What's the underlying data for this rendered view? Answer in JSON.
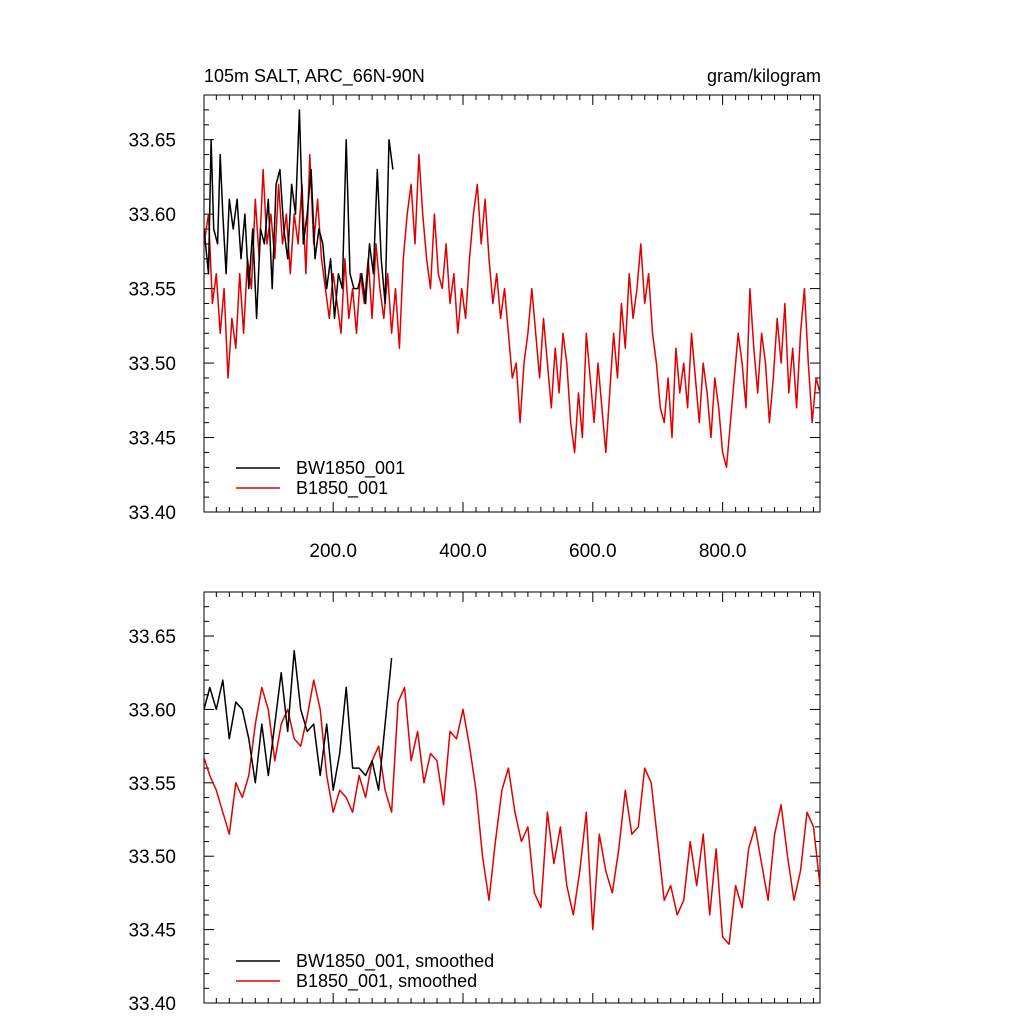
{
  "figure": {
    "title_left": "105m SALT, ARC_66N-90N",
    "title_right": "gram/kilogram"
  },
  "colors": {
    "black_series": "#000000",
    "red_series": "#e00000",
    "axis": "#000000"
  },
  "chart_data": [
    {
      "type": "line",
      "panel": "top",
      "title": "105m SALT, ARC_66N-90N",
      "unit": "gram/kilogram",
      "xlim": [
        1,
        950
      ],
      "ylim": [
        33.4,
        33.68
      ],
      "xticks": [
        200,
        400,
        600,
        800
      ],
      "xtick_labels": [
        "200.0",
        "400.0",
        "600.0",
        "800.0"
      ],
      "yticks": [
        33.4,
        33.45,
        33.5,
        33.55,
        33.6,
        33.65
      ],
      "ytick_labels": [
        "33.40",
        "33.45",
        "33.50",
        "33.55",
        "33.60",
        "33.65"
      ],
      "grid": false,
      "legend_position": "bottom-left",
      "series": [
        {
          "name": "BW1850_001",
          "color": "#000000",
          "x": [
            1,
            8,
            12,
            16,
            22,
            26,
            30,
            35,
            40,
            46,
            52,
            58,
            64,
            70,
            76,
            82,
            88,
            94,
            100,
            106,
            112,
            118,
            124,
            130,
            136,
            142,
            148,
            154,
            160,
            166,
            172,
            178,
            184,
            190,
            196,
            202,
            208,
            214,
            220,
            226,
            232,
            238,
            244,
            250,
            256,
            262,
            268,
            274,
            280,
            286,
            292
          ],
          "y": [
            33.59,
            33.56,
            33.65,
            33.59,
            33.58,
            33.64,
            33.6,
            33.56,
            33.61,
            33.59,
            33.61,
            33.57,
            33.6,
            33.55,
            33.59,
            33.53,
            33.59,
            33.58,
            33.61,
            33.55,
            33.62,
            33.63,
            33.59,
            33.57,
            33.62,
            33.6,
            33.67,
            33.58,
            33.6,
            33.63,
            33.57,
            33.59,
            33.58,
            33.55,
            33.57,
            33.53,
            33.56,
            33.55,
            33.65,
            33.56,
            33.55,
            33.55,
            33.56,
            33.54,
            33.58,
            33.56,
            33.63,
            33.57,
            33.54,
            33.65,
            33.63
          ]
        },
        {
          "name": "B1850_001",
          "color": "#e00000",
          "x": [
            1,
            8,
            14,
            20,
            26,
            32,
            38,
            44,
            50,
            56,
            62,
            68,
            74,
            80,
            86,
            92,
            98,
            104,
            110,
            116,
            122,
            128,
            134,
            140,
            146,
            152,
            158,
            164,
            170,
            176,
            182,
            188,
            194,
            200,
            206,
            212,
            218,
            224,
            230,
            236,
            242,
            248,
            254,
            260,
            266,
            272,
            278,
            284,
            290,
            296,
            302,
            308,
            314,
            320,
            326,
            332,
            338,
            344,
            350,
            356,
            362,
            368,
            374,
            380,
            386,
            392,
            398,
            404,
            410,
            416,
            422,
            428,
            434,
            440,
            446,
            452,
            458,
            464,
            470,
            476,
            482,
            488,
            494,
            500,
            506,
            512,
            518,
            524,
            530,
            536,
            542,
            548,
            554,
            560,
            566,
            572,
            578,
            584,
            590,
            596,
            602,
            608,
            614,
            620,
            626,
            632,
            638,
            644,
            650,
            656,
            662,
            668,
            674,
            680,
            686,
            692,
            698,
            704,
            710,
            716,
            722,
            728,
            734,
            740,
            746,
            752,
            758,
            764,
            770,
            776,
            782,
            788,
            794,
            800,
            806,
            812,
            818,
            824,
            830,
            836,
            842,
            848,
            854,
            860,
            866,
            872,
            878,
            884,
            890,
            896,
            902,
            908,
            914,
            920,
            926,
            932,
            938,
            944,
            950
          ],
          "y": [
            33.58,
            33.6,
            33.54,
            33.56,
            33.52,
            33.55,
            33.49,
            33.53,
            33.51,
            33.56,
            33.52,
            33.57,
            33.55,
            33.61,
            33.57,
            33.63,
            33.58,
            33.6,
            33.57,
            33.62,
            33.58,
            33.6,
            33.56,
            33.6,
            33.58,
            33.62,
            33.56,
            33.64,
            33.58,
            33.61,
            33.57,
            33.55,
            33.53,
            33.56,
            33.54,
            33.52,
            33.57,
            33.53,
            33.55,
            33.52,
            33.56,
            33.54,
            33.57,
            33.53,
            33.58,
            33.55,
            33.53,
            33.56,
            33.52,
            33.55,
            33.51,
            33.57,
            33.6,
            33.62,
            33.58,
            33.64,
            33.6,
            33.57,
            33.55,
            33.6,
            33.56,
            33.55,
            33.58,
            33.54,
            33.56,
            33.52,
            33.55,
            33.53,
            33.57,
            33.6,
            33.62,
            33.58,
            33.61,
            33.57,
            33.54,
            33.56,
            33.53,
            33.55,
            33.52,
            33.49,
            33.5,
            33.46,
            33.5,
            33.52,
            33.55,
            33.52,
            33.49,
            33.53,
            33.5,
            33.47,
            33.51,
            33.48,
            33.52,
            33.5,
            33.46,
            33.44,
            33.48,
            33.45,
            33.52,
            33.49,
            33.46,
            33.5,
            33.47,
            33.44,
            33.48,
            33.52,
            33.49,
            33.54,
            33.51,
            33.56,
            33.53,
            33.55,
            33.58,
            33.54,
            33.56,
            33.52,
            33.5,
            33.47,
            33.46,
            33.49,
            33.45,
            33.51,
            33.48,
            33.5,
            33.47,
            33.52,
            33.49,
            33.46,
            33.5,
            33.48,
            33.45,
            33.49,
            33.47,
            33.44,
            33.43,
            33.46,
            33.49,
            33.52,
            33.5,
            33.47,
            33.55,
            33.51,
            33.48,
            33.52,
            33.5,
            33.46,
            33.49,
            33.53,
            33.5,
            33.54,
            33.48,
            33.51,
            33.47,
            33.52,
            33.55,
            33.5,
            33.46,
            33.49,
            33.48
          ],
          "precision_note": ""
        }
      ]
    },
    {
      "type": "line",
      "panel": "bottom",
      "xlim": [
        1,
        950
      ],
      "ylim": [
        33.4,
        33.68
      ],
      "yticks": [
        33.4,
        33.45,
        33.5,
        33.55,
        33.6,
        33.65
      ],
      "ytick_labels": [
        "33.40",
        "33.45",
        "33.50",
        "33.55",
        "33.60",
        "33.65"
      ],
      "grid": false,
      "legend_position": "bottom-left",
      "series": [
        {
          "name": "BW1850_001, smoothed",
          "color": "#000000",
          "x": [
            1,
            10,
            20,
            30,
            40,
            50,
            60,
            70,
            80,
            90,
            100,
            110,
            120,
            130,
            140,
            150,
            160,
            170,
            180,
            190,
            200,
            210,
            220,
            230,
            240,
            250,
            260,
            270,
            280,
            290
          ],
          "y": [
            33.6,
            33.615,
            33.6,
            33.62,
            33.58,
            33.605,
            33.6,
            33.58,
            33.55,
            33.59,
            33.555,
            33.59,
            33.625,
            33.585,
            33.64,
            33.6,
            33.585,
            33.59,
            33.555,
            33.59,
            33.545,
            33.57,
            33.615,
            33.56,
            33.56,
            33.555,
            33.565,
            33.545,
            33.59,
            33.635
          ]
        },
        {
          "name": "B1850_001, smoothed",
          "color": "#e00000",
          "x": [
            1,
            10,
            20,
            30,
            40,
            50,
            60,
            70,
            80,
            90,
            100,
            110,
            120,
            130,
            140,
            150,
            160,
            170,
            180,
            190,
            200,
            210,
            220,
            230,
            240,
            250,
            260,
            270,
            280,
            290,
            300,
            310,
            320,
            330,
            340,
            350,
            360,
            370,
            380,
            390,
            400,
            410,
            420,
            430,
            440,
            450,
            460,
            470,
            480,
            490,
            500,
            510,
            520,
            530,
            540,
            550,
            560,
            570,
            580,
            590,
            600,
            610,
            620,
            630,
            640,
            650,
            660,
            670,
            680,
            690,
            700,
            710,
            720,
            730,
            740,
            750,
            760,
            770,
            780,
            790,
            800,
            810,
            820,
            830,
            840,
            850,
            860,
            870,
            880,
            890,
            900,
            910,
            920,
            930,
            940,
            950
          ],
          "y": [
            33.567,
            33.555,
            33.545,
            33.53,
            33.515,
            33.55,
            33.54,
            33.555,
            33.59,
            33.615,
            33.6,
            33.565,
            33.59,
            33.6,
            33.58,
            33.575,
            33.595,
            33.62,
            33.6,
            33.555,
            33.53,
            33.545,
            33.54,
            33.53,
            33.555,
            33.54,
            33.565,
            33.575,
            33.545,
            33.53,
            33.605,
            33.615,
            33.565,
            33.585,
            33.55,
            33.57,
            33.565,
            33.535,
            33.585,
            33.58,
            33.6,
            33.575,
            33.545,
            33.5,
            33.47,
            33.51,
            33.545,
            33.56,
            33.53,
            33.51,
            33.52,
            33.475,
            33.465,
            33.53,
            33.495,
            33.52,
            33.48,
            33.46,
            33.49,
            33.53,
            33.45,
            33.515,
            33.49,
            33.475,
            33.505,
            33.545,
            33.515,
            33.52,
            33.56,
            33.55,
            33.51,
            33.47,
            33.48,
            33.46,
            33.47,
            33.51,
            33.48,
            33.515,
            33.46,
            33.505,
            33.445,
            33.44,
            33.48,
            33.465,
            33.505,
            33.52,
            33.495,
            33.47,
            33.515,
            33.535,
            33.5,
            33.47,
            33.49,
            33.53,
            33.52,
            33.48
          ]
        }
      ]
    }
  ]
}
